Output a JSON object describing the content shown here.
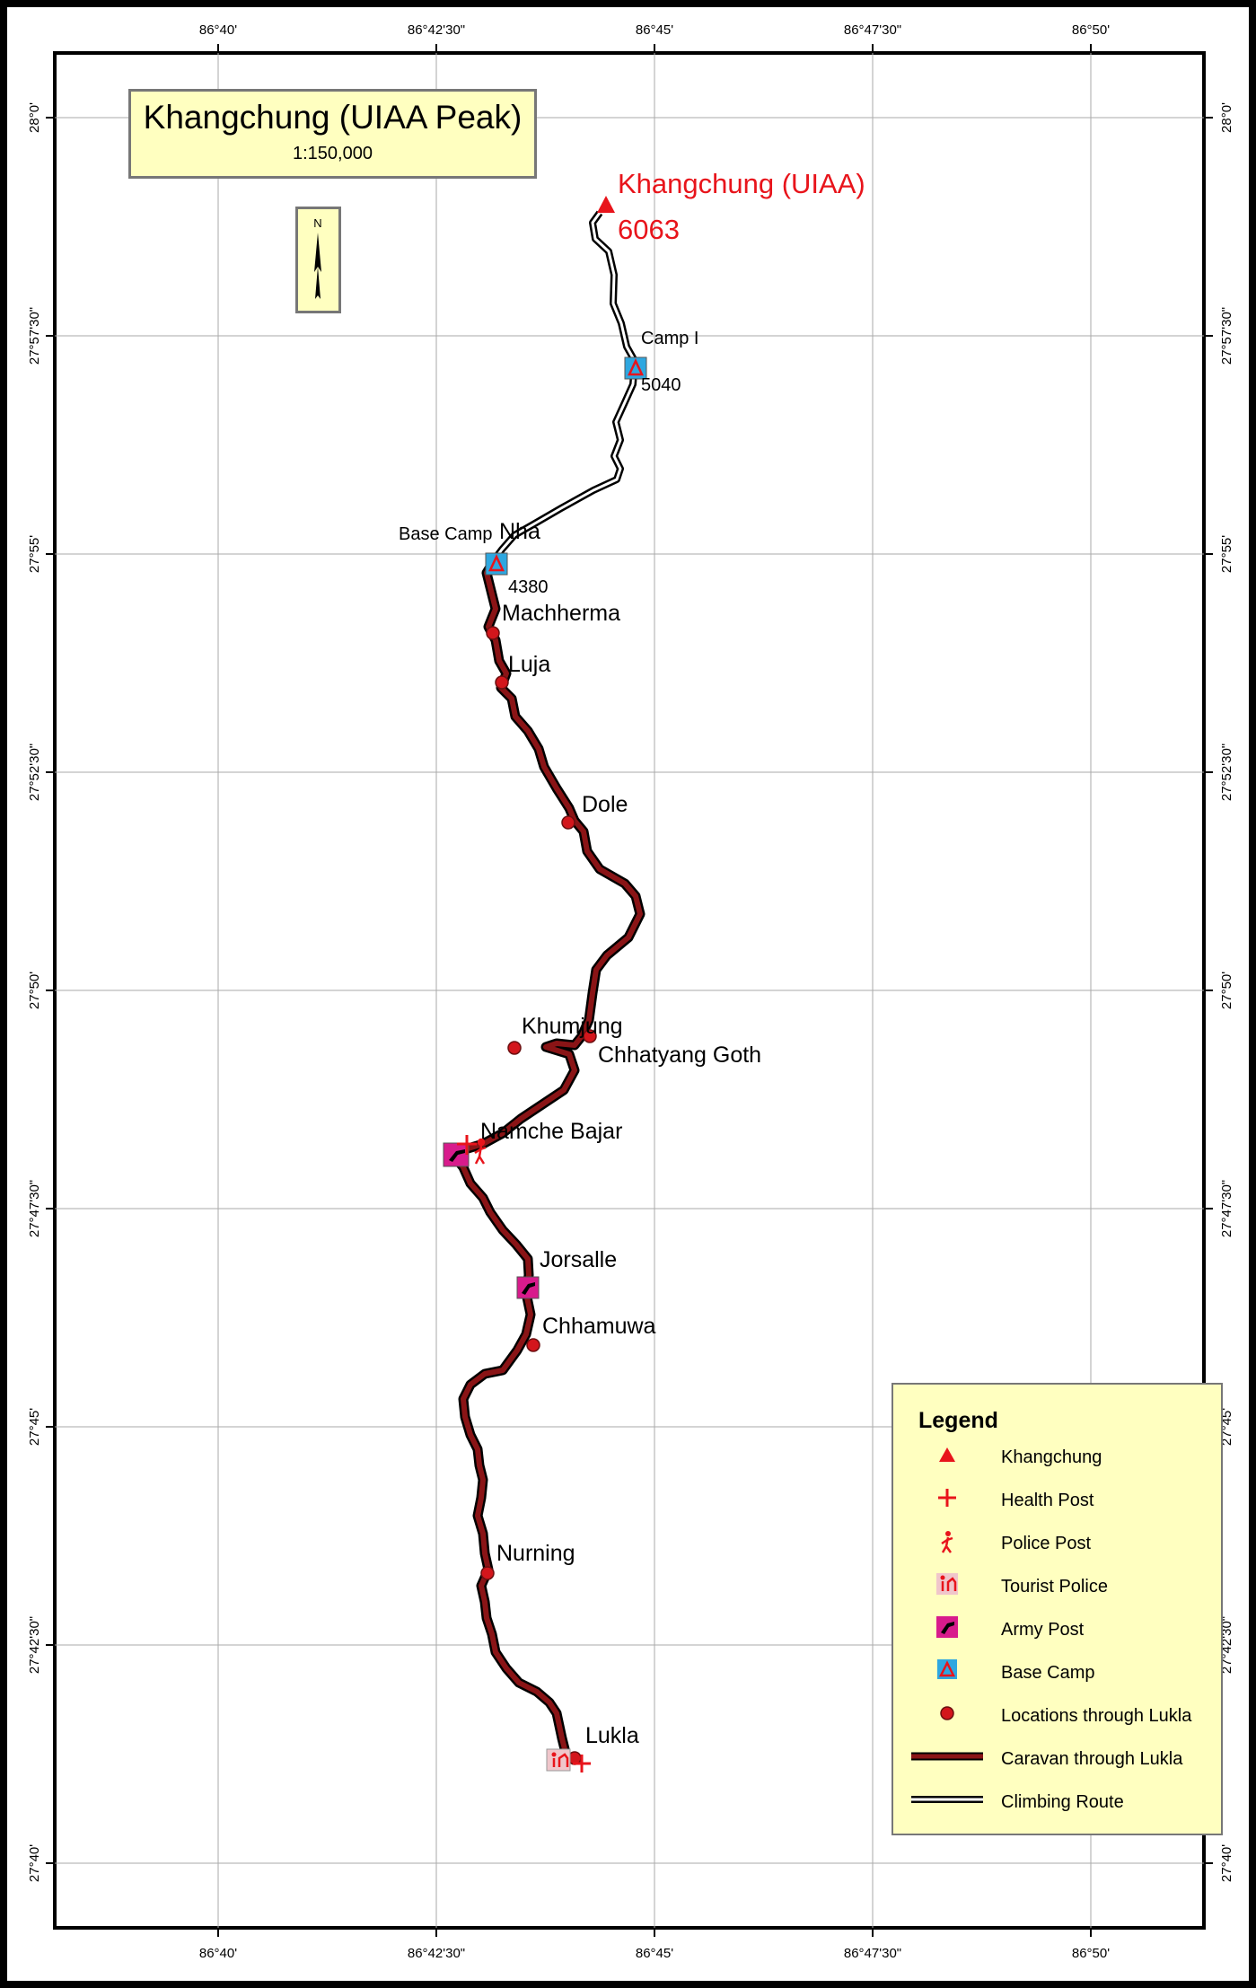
{
  "title": "Khangchung (UIAA Peak)",
  "scale": "1:150,000",
  "north_label": "N",
  "lon_ticks": [
    "86°40'",
    "86°42'30\"",
    "86°45'",
    "86°47'30\"",
    "86°50'"
  ],
  "lat_ticks": [
    "28°0'",
    "27°57'30\"",
    "27°55'",
    "27°52'30\"",
    "27°50'",
    "27°47'30\"",
    "27°45'",
    "27°42'30\"",
    "27°40'"
  ],
  "peak": {
    "name": "Khangchung (UIAA)",
    "elevation": "6063"
  },
  "camps": {
    "camp1": {
      "name": "Camp I",
      "elevation": "5040"
    },
    "base": {
      "name": "Base Camp",
      "elevation": "4380"
    }
  },
  "places": {
    "nha": "Nha",
    "machherma": "Machherma",
    "luja": "Luja",
    "dole": "Dole",
    "khumjung": "Khumjung",
    "chhatyang": "Chhatyang Goth",
    "namche": "Namche Bajar",
    "jorsalle": "Jorsalle",
    "chhamuwa": "Chhamuwa",
    "nurning": "Nurning",
    "lukla": "Lukla"
  },
  "legend": {
    "title": "Legend",
    "items": [
      {
        "label": "Khangchung",
        "symbol": "peak-triangle"
      },
      {
        "label": "Health Post",
        "symbol": "cross"
      },
      {
        "label": "Police Post",
        "symbol": "police"
      },
      {
        "label": "Tourist Police",
        "symbol": "tourist-police"
      },
      {
        "label": "Army Post",
        "symbol": "army"
      },
      {
        "label": "Base Camp",
        "symbol": "base-camp"
      },
      {
        "label": "Locations through Lukla",
        "symbol": "dot"
      },
      {
        "label": "Caravan through Lukla",
        "symbol": "caravan-line"
      },
      {
        "label": "Climbing Route",
        "symbol": "climbing-line"
      }
    ]
  },
  "colors": {
    "route": "#6b0f10",
    "accent": "#e8141b",
    "camp": "#2ea7e0",
    "army": "#d81b8c",
    "panel": "#ffffc0"
  }
}
